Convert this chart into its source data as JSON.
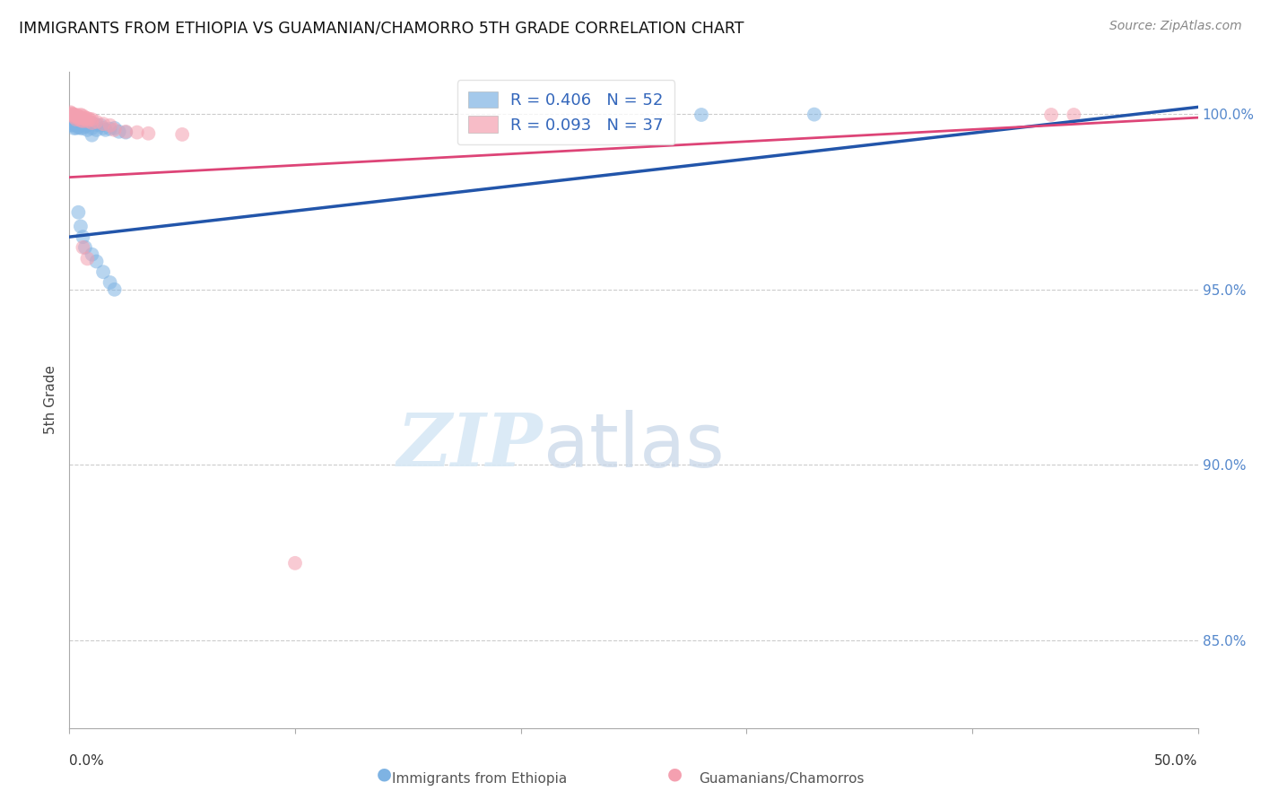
{
  "title": "IMMIGRANTS FROM ETHIOPIA VS GUAMANIAN/CHAMORRO 5TH GRADE CORRELATION CHART",
  "source": "Source: ZipAtlas.com",
  "ylabel": "5th Grade",
  "legend_blue_label": "Immigrants from Ethiopia",
  "legend_pink_label": "Guamanians/Chamorros",
  "blue_color": "#7EB3E3",
  "pink_color": "#F4A0B0",
  "trendline_blue": "#2255AA",
  "trendline_pink": "#DD4477",
  "ytick_positions": [
    1.0,
    0.95,
    0.9,
    0.85
  ],
  "ytick_labels": [
    "100.0%",
    "95.0%",
    "90.0%",
    "85.0%"
  ],
  "xlim": [
    0,
    0.5
  ],
  "ylim": [
    0.825,
    1.012
  ],
  "blue_trend": [
    0,
    0.5,
    0.965,
    1.002
  ],
  "pink_trend": [
    0,
    0.5,
    0.982,
    0.999
  ],
  "blue_scatter": [
    [
      0.0005,
      0.9985
    ],
    [
      0.0008,
      0.998
    ],
    [
      0.001,
      0.9975
    ],
    [
      0.001,
      0.997
    ],
    [
      0.001,
      0.9968
    ],
    [
      0.0015,
      0.9992
    ],
    [
      0.002,
      0.9988
    ],
    [
      0.002,
      0.9978
    ],
    [
      0.002,
      0.9972
    ],
    [
      0.002,
      0.996
    ],
    [
      0.003,
      0.999
    ],
    [
      0.003,
      0.9985
    ],
    [
      0.003,
      0.9975
    ],
    [
      0.003,
      0.9968
    ],
    [
      0.003,
      0.996
    ],
    [
      0.004,
      0.998
    ],
    [
      0.004,
      0.9972
    ],
    [
      0.004,
      0.9962
    ],
    [
      0.005,
      0.9988
    ],
    [
      0.005,
      0.9978
    ],
    [
      0.005,
      0.997
    ],
    [
      0.005,
      0.996
    ],
    [
      0.006,
      0.9982
    ],
    [
      0.006,
      0.9972
    ],
    [
      0.006,
      0.996
    ],
    [
      0.007,
      0.9978
    ],
    [
      0.007,
      0.9965
    ],
    [
      0.008,
      0.998
    ],
    [
      0.008,
      0.9968
    ],
    [
      0.008,
      0.9955
    ],
    [
      0.01,
      0.9975
    ],
    [
      0.01,
      0.996
    ],
    [
      0.01,
      0.994
    ],
    [
      0.012,
      0.997
    ],
    [
      0.012,
      0.9955
    ],
    [
      0.014,
      0.9968
    ],
    [
      0.015,
      0.996
    ],
    [
      0.016,
      0.9955
    ],
    [
      0.018,
      0.9958
    ],
    [
      0.02,
      0.996
    ],
    [
      0.022,
      0.995
    ],
    [
      0.025,
      0.9948
    ],
    [
      0.004,
      0.972
    ],
    [
      0.005,
      0.968
    ],
    [
      0.006,
      0.965
    ],
    [
      0.007,
      0.962
    ],
    [
      0.01,
      0.96
    ],
    [
      0.012,
      0.958
    ],
    [
      0.015,
      0.955
    ],
    [
      0.018,
      0.952
    ],
    [
      0.02,
      0.95
    ],
    [
      0.28,
      0.9998
    ],
    [
      0.33,
      0.9999
    ]
  ],
  "pink_scatter": [
    [
      0.0005,
      1.0005
    ],
    [
      0.001,
      1.0002
    ],
    [
      0.001,
      0.9998
    ],
    [
      0.0015,
      1.0
    ],
    [
      0.002,
      0.9998
    ],
    [
      0.002,
      0.9992
    ],
    [
      0.003,
      0.9998
    ],
    [
      0.003,
      0.9992
    ],
    [
      0.003,
      0.9985
    ],
    [
      0.004,
      0.9995
    ],
    [
      0.004,
      0.9988
    ],
    [
      0.005,
      0.9998
    ],
    [
      0.005,
      0.999
    ],
    [
      0.005,
      0.9982
    ],
    [
      0.006,
      0.9995
    ],
    [
      0.006,
      0.9988
    ],
    [
      0.006,
      0.998
    ],
    [
      0.007,
      0.999
    ],
    [
      0.007,
      0.9985
    ],
    [
      0.008,
      0.9988
    ],
    [
      0.008,
      0.998
    ],
    [
      0.009,
      0.9985
    ],
    [
      0.01,
      0.9985
    ],
    [
      0.01,
      0.9975
    ],
    [
      0.012,
      0.9978
    ],
    [
      0.015,
      0.9972
    ],
    [
      0.018,
      0.9968
    ],
    [
      0.02,
      0.9955
    ],
    [
      0.025,
      0.995
    ],
    [
      0.03,
      0.9948
    ],
    [
      0.035,
      0.9945
    ],
    [
      0.05,
      0.9942
    ],
    [
      0.006,
      0.962
    ],
    [
      0.008,
      0.9588
    ],
    [
      0.1,
      0.872
    ],
    [
      0.435,
      0.9998
    ],
    [
      0.445,
      0.9998
    ]
  ]
}
